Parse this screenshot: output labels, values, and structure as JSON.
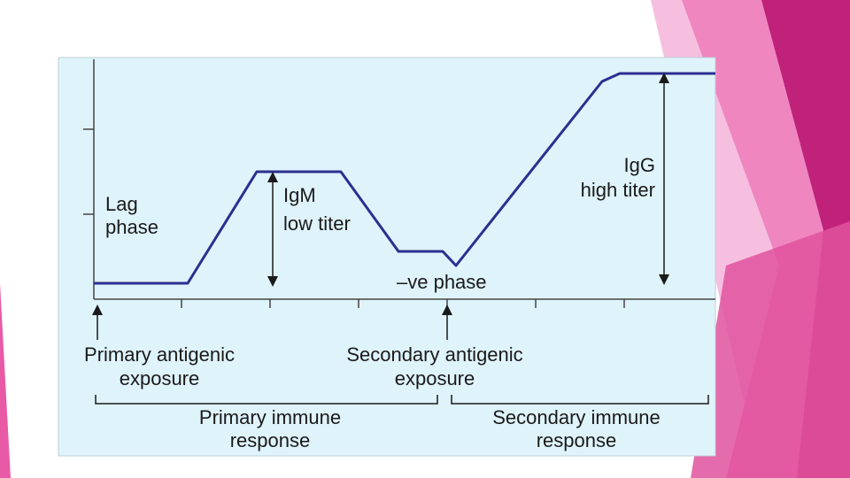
{
  "colors": {
    "panel_bg": "#dff3fb",
    "curve": "#2b2f8f",
    "axis": "#444444",
    "text": "#1a1a1a",
    "pink_light": "#f3a9d2",
    "pink_mid": "#e6559f",
    "pink_dark": "#b8186f"
  },
  "diagram": {
    "lag_phase": [
      "Lag",
      "phase"
    ],
    "igm": [
      "IgM",
      "low titer"
    ],
    "igg": [
      "IgG",
      "high titer"
    ],
    "ve_phase": "–ve phase",
    "primary_exposure": [
      "Primary antigenic",
      "exposure"
    ],
    "secondary_exposure": [
      "Secondary antigenic",
      "exposure"
    ],
    "primary_response": [
      "Primary immune",
      "response"
    ],
    "secondary_response": [
      "Secondary immune",
      "response"
    ]
  }
}
